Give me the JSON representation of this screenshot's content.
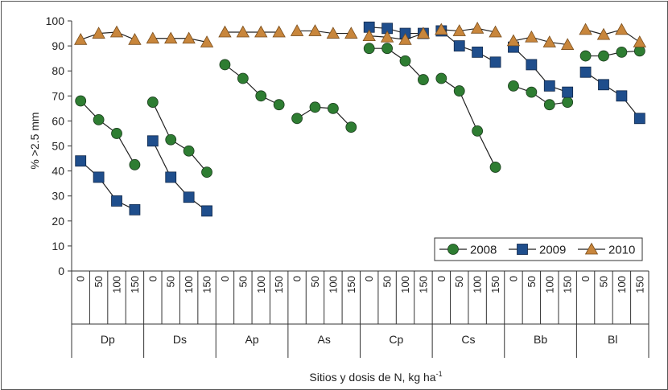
{
  "chart_data": {
    "type": "line",
    "ylabel": "% >2.5 mm",
    "xlabel_main": "Sitios y dosis de N, kg ha",
    "xlabel_sup": "-1",
    "ylim": [
      0,
      100
    ],
    "yticks": [
      0,
      10,
      20,
      30,
      40,
      50,
      60,
      70,
      80,
      90,
      100
    ],
    "doses": [
      "0",
      "50",
      "100",
      "150"
    ],
    "sites": [
      "Dp",
      "Ds",
      "Ap",
      "As",
      "Cp",
      "Cs",
      "Bb",
      "Bl"
    ],
    "grid": false,
    "legend_position": "bottom-right",
    "series": [
      {
        "name": "2008",
        "marker": "circle",
        "color": "#2e7d32",
        "values": {
          "Dp": [
            68,
            60.5,
            55,
            42.5
          ],
          "Ds": [
            67.5,
            52.5,
            48,
            39.5
          ],
          "Ap": [
            82.5,
            77,
            70,
            66.5
          ],
          "As": [
            61,
            65.5,
            65,
            57.5
          ],
          "Cp": [
            89,
            89,
            84,
            76.5
          ],
          "Cs": [
            77,
            72,
            56,
            41.5
          ],
          "Bb": [
            74,
            71.5,
            66.5,
            67.5
          ],
          "Bl": [
            86,
            86,
            87.5,
            88
          ]
        }
      },
      {
        "name": "2009",
        "marker": "square",
        "color": "#1f4e8c",
        "values": {
          "Dp": [
            44,
            37.5,
            28,
            24.5
          ],
          "Ds": [
            52,
            37.5,
            29.5,
            24
          ],
          "Ap": null,
          "As": null,
          "Cp": [
            97.5,
            97,
            95,
            95
          ],
          "Cs": [
            96,
            90,
            87.5,
            83.5
          ],
          "Bb": [
            89.5,
            82.5,
            74,
            71.5
          ],
          "Bl": [
            79.5,
            74.5,
            70,
            61
          ]
        }
      },
      {
        "name": "2010",
        "marker": "triangle",
        "color": "#c8863c",
        "values": {
          "Dp": [
            92.5,
            95,
            95.5,
            92.5
          ],
          "Ds": [
            93,
            93,
            93,
            91.5
          ],
          "Ap": [
            95.5,
            95.5,
            95.5,
            95.5
          ],
          "As": [
            96,
            96,
            95,
            95
          ],
          "Cp": [
            94,
            93.5,
            92.5,
            95
          ],
          "Cs": [
            96.5,
            96,
            97,
            95.5
          ],
          "Bb": [
            92,
            93.5,
            91.5,
            90.5
          ],
          "Bl": [
            96.5,
            94.5,
            96.5,
            91.5
          ]
        }
      }
    ]
  }
}
